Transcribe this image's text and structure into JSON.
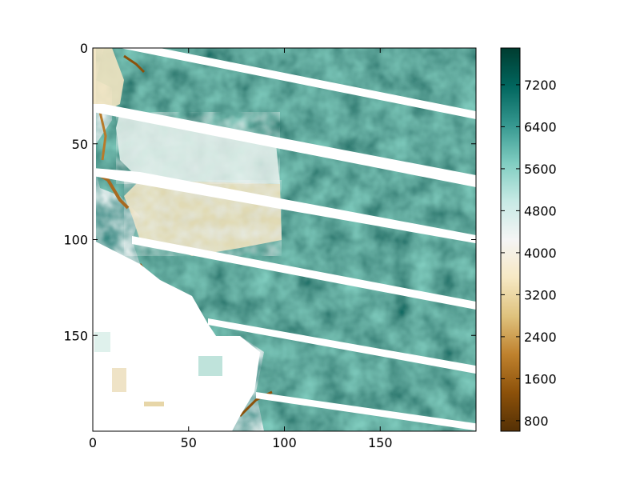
{
  "chart_data": {
    "type": "heatmap",
    "title": "",
    "xlabel": "",
    "ylabel": "",
    "xlim": [
      0,
      200
    ],
    "ylim": [
      200,
      0
    ],
    "x_ticks": [
      0,
      50,
      100,
      150
    ],
    "y_ticks": [
      0,
      50,
      100,
      150
    ],
    "colormap": "BrBG",
    "colorbar": {
      "min": 600,
      "max": 7900,
      "ticks": [
        800,
        1600,
        2400,
        3200,
        4000,
        4800,
        5600,
        6400,
        7200
      ],
      "colors": [
        "#543005",
        "#8c510a",
        "#bf812d",
        "#dfc27d",
        "#f6e8c3",
        "#f5f5f5",
        "#c7eae5",
        "#80cdc1",
        "#35978f",
        "#01665e",
        "#003c30"
      ]
    },
    "notes_visible": {
      "missing_data_color": "#ffffff"
    }
  }
}
